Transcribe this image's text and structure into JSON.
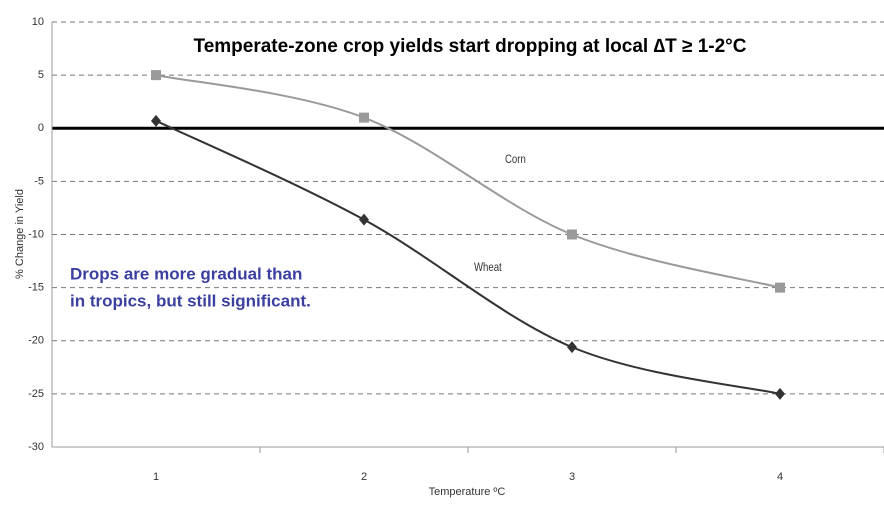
{
  "chart_data": {
    "type": "line",
    "title": "Temperate-zone crop yields start dropping at local ∆T ≥ 1-2°C",
    "annotations": [
      "Drops are more gradual than",
      "in tropics, but still significant."
    ],
    "x_label": "Temperature ºC",
    "y_label": "% Change in Yield",
    "x": [
      1,
      2,
      3,
      4
    ],
    "series": [
      {
        "name": "Corn",
        "color": "#9a9a9a",
        "values": [
          5,
          1,
          -10,
          -15
        ]
      },
      {
        "name": "Wheat",
        "color": "#333333",
        "values": [
          0.7,
          -8.6,
          -20.6,
          -25
        ]
      }
    ],
    "xlim": [
      0.5,
      4.5
    ],
    "xticks": [
      1,
      2,
      3,
      4
    ],
    "ylim": [
      -30,
      10
    ],
    "yticks": [
      10,
      5,
      0,
      -5,
      -10,
      -15,
      -20,
      -25,
      -30
    ],
    "grid": true
  }
}
